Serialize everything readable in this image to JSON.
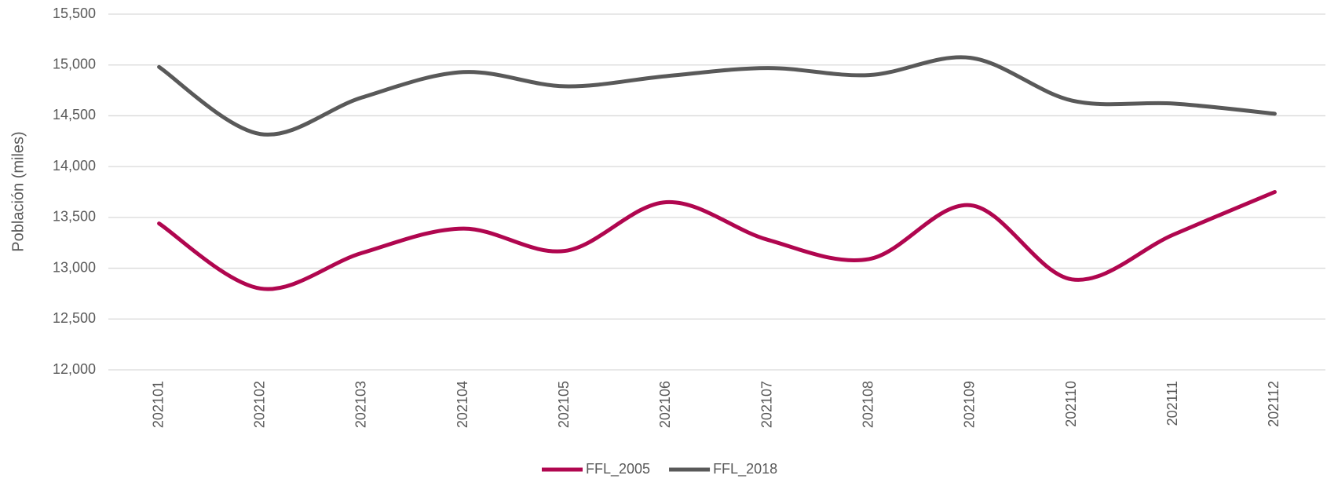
{
  "chart_data": {
    "type": "line",
    "y_label": "Población (miles)",
    "categories": [
      "202101",
      "202102",
      "202103",
      "202104",
      "202105",
      "202106",
      "202107",
      "202108",
      "202109",
      "202110",
      "202111",
      "202112"
    ],
    "series": [
      {
        "name": "FFL_2005",
        "color": "#b0064f",
        "values": [
          13440,
          12800,
          13150,
          13390,
          13170,
          13650,
          13280,
          13090,
          13620,
          12890,
          13330,
          13750
        ]
      },
      {
        "name": "FFL_2018",
        "color": "#595959",
        "values": [
          14980,
          14320,
          14680,
          14930,
          14790,
          14890,
          14970,
          14900,
          15070,
          14650,
          14620,
          14520
        ]
      }
    ],
    "ylim": [
      12000,
      15500
    ],
    "yticks": [
      {
        "value": 12000,
        "label": "12,000"
      },
      {
        "value": 12500,
        "label": "12,500"
      },
      {
        "value": 13000,
        "label": "13,000"
      },
      {
        "value": 13500,
        "label": "13,500"
      },
      {
        "value": 14000,
        "label": "14,000"
      },
      {
        "value": 14500,
        "label": "14,500"
      },
      {
        "value": 15000,
        "label": "15,000"
      },
      {
        "value": 15500,
        "label": "15,500"
      }
    ],
    "grid": true,
    "smooth": true,
    "legend": "bottom"
  }
}
